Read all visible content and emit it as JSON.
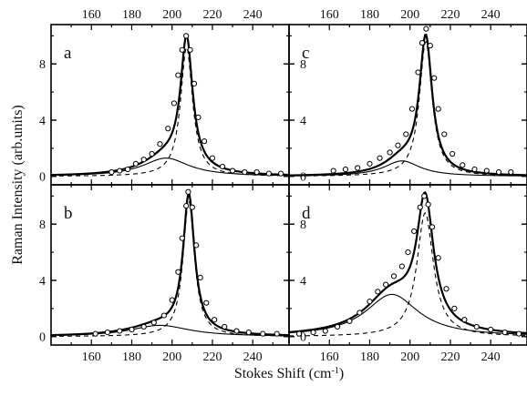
{
  "chart_data": {
    "type": "scatter",
    "ylabel": "Raman Intensity (arb.units)",
    "xlabel_main": "Stokes Shift (cm",
    "xlabel_sup": "-1",
    "xlabel_close": ")",
    "xlim": [
      140,
      258
    ],
    "ylim": [
      -0.6,
      10.8
    ],
    "xticks": [
      160,
      180,
      200,
      220,
      240
    ],
    "yticks": [
      0,
      4,
      8
    ],
    "grid": false,
    "panels": [
      {
        "letter": "a",
        "position": "top-left",
        "ylim": [
          -0.6,
          10.8
        ],
        "x0": 207.2,
        "g0": 3.6,
        "a0": 9.2,
        "x1": 197.0,
        "g1": 14.0,
        "a1": 1.3,
        "data_x_range": [
          168,
          254
        ],
        "points": [
          {
            "x": 170,
            "y": 0.3
          },
          {
            "x": 174,
            "y": 0.4
          },
          {
            "x": 178,
            "y": 0.5
          },
          {
            "x": 182,
            "y": 0.9
          },
          {
            "x": 186,
            "y": 1.2
          },
          {
            "x": 190,
            "y": 1.6
          },
          {
            "x": 194,
            "y": 2.3
          },
          {
            "x": 198,
            "y": 3.4
          },
          {
            "x": 201,
            "y": 5.2
          },
          {
            "x": 203,
            "y": 7.2
          },
          {
            "x": 205,
            "y": 9.0
          },
          {
            "x": 207,
            "y": 10.0
          },
          {
            "x": 209,
            "y": 9.0
          },
          {
            "x": 211,
            "y": 6.6
          },
          {
            "x": 213,
            "y": 4.2
          },
          {
            "x": 216,
            "y": 2.5
          },
          {
            "x": 220,
            "y": 1.3
          },
          {
            "x": 225,
            "y": 0.7
          },
          {
            "x": 230,
            "y": 0.4
          },
          {
            "x": 236,
            "y": 0.3
          },
          {
            "x": 242,
            "y": 0.3
          },
          {
            "x": 248,
            "y": 0.2
          },
          {
            "x": 254,
            "y": 0.2
          }
        ]
      },
      {
        "letter": "c",
        "position": "top-right",
        "ylim": [
          -0.6,
          10.8
        ],
        "x0": 207.8,
        "g0": 3.8,
        "a0": 9.6,
        "x1": 196.0,
        "g1": 11.0,
        "a1": 1.1,
        "data_x_range": [
          160,
          250
        ],
        "points": [
          {
            "x": 162,
            "y": 0.4
          },
          {
            "x": 168,
            "y": 0.5
          },
          {
            "x": 174,
            "y": 0.6
          },
          {
            "x": 180,
            "y": 0.9
          },
          {
            "x": 185,
            "y": 1.3
          },
          {
            "x": 190,
            "y": 1.7
          },
          {
            "x": 194,
            "y": 2.2
          },
          {
            "x": 198,
            "y": 3.0
          },
          {
            "x": 201,
            "y": 4.8
          },
          {
            "x": 204,
            "y": 7.4
          },
          {
            "x": 206,
            "y": 9.5
          },
          {
            "x": 208,
            "y": 10.5
          },
          {
            "x": 210,
            "y": 9.3
          },
          {
            "x": 212,
            "y": 7.0
          },
          {
            "x": 214,
            "y": 4.8
          },
          {
            "x": 217,
            "y": 3.0
          },
          {
            "x": 221,
            "y": 1.6
          },
          {
            "x": 226,
            "y": 0.8
          },
          {
            "x": 232,
            "y": 0.5
          },
          {
            "x": 238,
            "y": 0.4
          },
          {
            "x": 244,
            "y": 0.3
          },
          {
            "x": 250,
            "y": 0.3
          }
        ]
      },
      {
        "letter": "b",
        "position": "bottom-left",
        "ylim": [
          -0.6,
          10.8
        ],
        "x0": 208.3,
        "g0": 3.4,
        "a0": 9.7,
        "x1": 194.0,
        "g1": 18.0,
        "a1": 0.8,
        "data_x_range": [
          160,
          254
        ],
        "points": [
          {
            "x": 162,
            "y": 0.2
          },
          {
            "x": 168,
            "y": 0.3
          },
          {
            "x": 174,
            "y": 0.4
          },
          {
            "x": 180,
            "y": 0.5
          },
          {
            "x": 186,
            "y": 0.7
          },
          {
            "x": 191,
            "y": 1.0
          },
          {
            "x": 196,
            "y": 1.5
          },
          {
            "x": 200,
            "y": 2.6
          },
          {
            "x": 203,
            "y": 4.6
          },
          {
            "x": 205,
            "y": 7.0
          },
          {
            "x": 207,
            "y": 9.3
          },
          {
            "x": 208,
            "y": 10.3
          },
          {
            "x": 210,
            "y": 9.2
          },
          {
            "x": 212,
            "y": 6.5
          },
          {
            "x": 214,
            "y": 4.2
          },
          {
            "x": 217,
            "y": 2.4
          },
          {
            "x": 221,
            "y": 1.2
          },
          {
            "x": 226,
            "y": 0.7
          },
          {
            "x": 232,
            "y": 0.4
          },
          {
            "x": 238,
            "y": 0.3
          },
          {
            "x": 245,
            "y": 0.2
          },
          {
            "x": 252,
            "y": 0.2
          }
        ]
      },
      {
        "letter": "d",
        "position": "bottom-right",
        "ylim": [
          -0.6,
          10.8
        ],
        "x0": 207.5,
        "g0": 5.0,
        "a0": 8.8,
        "x1": 191.0,
        "g1": 16.0,
        "a1": 3.0,
        "data_x_range": [
          142,
          256
        ],
        "points": [
          {
            "x": 145,
            "y": 0.2
          },
          {
            "x": 152,
            "y": 0.3
          },
          {
            "x": 158,
            "y": 0.4
          },
          {
            "x": 164,
            "y": 0.7
          },
          {
            "x": 170,
            "y": 1.1
          },
          {
            "x": 175,
            "y": 1.7
          },
          {
            "x": 180,
            "y": 2.5
          },
          {
            "x": 184,
            "y": 3.2
          },
          {
            "x": 188,
            "y": 3.7
          },
          {
            "x": 192,
            "y": 4.3
          },
          {
            "x": 196,
            "y": 5.0
          },
          {
            "x": 199,
            "y": 6.0
          },
          {
            "x": 202,
            "y": 7.5
          },
          {
            "x": 205,
            "y": 9.2
          },
          {
            "x": 207,
            "y": 10.0
          },
          {
            "x": 209,
            "y": 9.4
          },
          {
            "x": 211,
            "y": 7.8
          },
          {
            "x": 214,
            "y": 5.6
          },
          {
            "x": 218,
            "y": 3.4
          },
          {
            "x": 222,
            "y": 2.0
          },
          {
            "x": 227,
            "y": 1.2
          },
          {
            "x": 233,
            "y": 0.7
          },
          {
            "x": 240,
            "y": 0.5
          },
          {
            "x": 247,
            "y": 0.3
          },
          {
            "x": 254,
            "y": 0.2
          }
        ]
      }
    ]
  }
}
